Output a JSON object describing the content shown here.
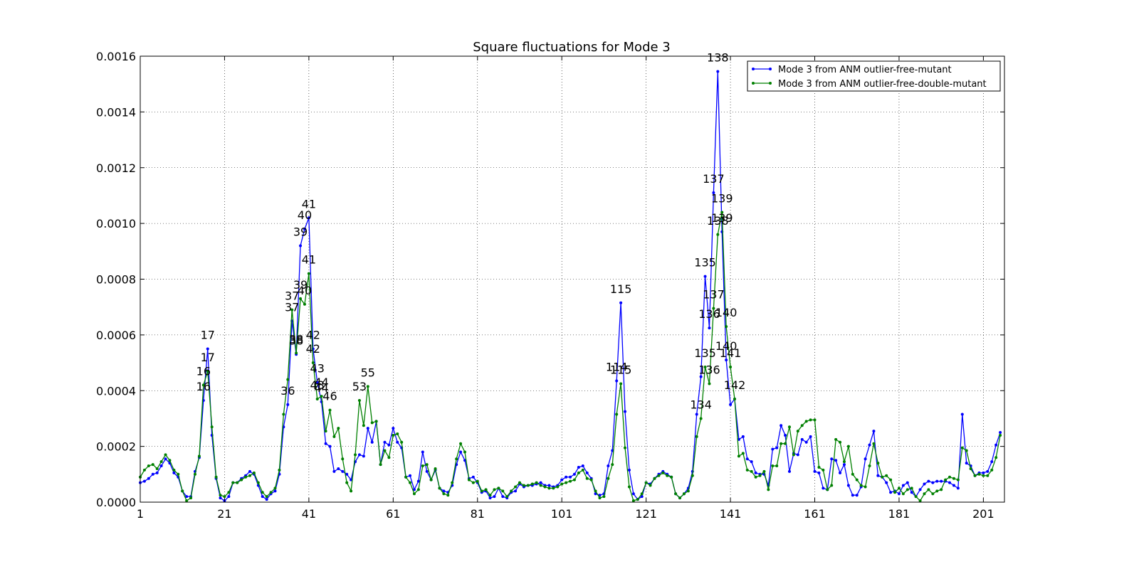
{
  "chart_data": {
    "type": "line",
    "title": "Square fluctuations for Mode 3",
    "xlabel": "",
    "ylabel": "",
    "xlim": [
      1,
      206
    ],
    "ylim": [
      0,
      0.0016
    ],
    "x_ticks": [
      1,
      21,
      41,
      61,
      81,
      101,
      121,
      141,
      161,
      181,
      201
    ],
    "y_ticks": [
      0.0,
      0.0002,
      0.0004,
      0.0006,
      0.0008,
      0.001,
      0.0012,
      0.0014,
      0.0016
    ],
    "y_tick_labels": [
      "0.0000",
      "0.0002",
      "0.0004",
      "0.0006",
      "0.0008",
      "0.0010",
      "0.0012",
      "0.0014",
      "0.0016"
    ],
    "grid": true,
    "legend_position": "top-right",
    "series": [
      {
        "name": "Mode 3 from ANM outlier-free-mutant",
        "color": "#0000ff",
        "values": [
          7e-05,
          7.5e-05,
          8.5e-05,
          0.0001,
          0.000105,
          0.00013,
          0.000155,
          0.00014,
          0.000105,
          9e-05,
          4e-05,
          2e-05,
          2e-05,
          0.00011,
          0.00016,
          0.000365,
          0.00055,
          0.00024,
          8.5e-05,
          1.5e-05,
          5e-06,
          2e-05,
          7e-05,
          7e-05,
          8.5e-05,
          9.5e-05,
          0.00011,
          0.0001,
          6e-05,
          2e-05,
          1e-05,
          3e-05,
          4e-05,
          0.0001,
          0.00027,
          0.00035,
          0.00065,
          0.00053,
          0.00092,
          0.00098,
          0.00102,
          0.00055,
          0.00043,
          0.00036,
          0.00021,
          0.0002,
          0.00011,
          0.00012,
          0.00011,
          0.0001,
          8e-05,
          0.000145,
          0.00017,
          0.000165,
          0.000265,
          0.000215,
          0.00029,
          0.000135,
          0.000215,
          0.000205,
          0.000265,
          0.000215,
          0.000195,
          9e-05,
          9.5e-05,
          4.5e-05,
          7.5e-05,
          0.00018,
          0.00011,
          8e-05,
          0.000115,
          5e-05,
          4e-05,
          3.5e-05,
          6e-05,
          0.000135,
          0.00018,
          0.00015,
          8.5e-05,
          9e-05,
          7e-05,
          3.5e-05,
          4e-05,
          1.5e-05,
          2e-05,
          5e-05,
          2e-05,
          1.5e-05,
          3.5e-05,
          4e-05,
          6.5e-05,
          5.5e-05,
          6e-05,
          6e-05,
          6.5e-05,
          7e-05,
          6e-05,
          6e-05,
          5.5e-05,
          6e-05,
          8e-05,
          9e-05,
          9e-05,
          0.0001,
          0.000125,
          0.00013,
          0.000105,
          8.5e-05,
          3e-05,
          2.5e-05,
          3e-05,
          0.00013,
          0.000185,
          0.000435,
          0.000715,
          0.000325,
          0.000115,
          3e-05,
          1e-05,
          2e-05,
          7e-05,
          6.5e-05,
          8.5e-05,
          0.0001,
          0.00011,
          0.0001,
          9e-05,
          3e-05,
          1.5e-05,
          3e-05,
          5e-05,
          0.00011,
          0.000315,
          0.00045,
          0.00081,
          0.000625,
          0.00111,
          0.001545,
          0.00097,
          0.00051,
          0.00035,
          0.00037,
          0.000225,
          0.000235,
          0.000155,
          0.000145,
          0.000105,
          0.0001,
          0.0001,
          6e-05,
          0.00019,
          0.000195,
          0.000275,
          0.00024,
          0.00011,
          0.000175,
          0.00017,
          0.000225,
          0.000215,
          0.000235,
          0.00011,
          0.000105,
          5e-05,
          4.5e-05,
          0.000155,
          0.00015,
          0.000105,
          0.000135,
          6e-05,
          2.5e-05,
          2.5e-05,
          5.5e-05,
          0.000155,
          0.000205,
          0.000255,
          9.5e-05,
          9e-05,
          7e-05,
          3.5e-05,
          4e-05,
          3e-05,
          6e-05,
          7e-05,
          3.5e-05,
          2e-05,
          4.5e-05,
          6.5e-05,
          7.5e-05,
          7e-05,
          7.5e-05,
          7.5e-05,
          7.5e-05,
          7e-05,
          6e-05,
          5e-05,
          0.000315,
          0.00014,
          0.00013,
          9.5e-05,
          0.000105,
          0.000105,
          0.00011,
          0.000145,
          0.000205,
          0.00025
        ],
        "annotations": [
          {
            "x": 16,
            "y": 0.000365,
            "label": "16"
          },
          {
            "x": 17,
            "y": 0.00055,
            "label": "17"
          },
          {
            "x": 36,
            "y": 0.00035,
            "label": "36"
          },
          {
            "x": 37,
            "y": 0.00065,
            "label": "37"
          },
          {
            "x": 38,
            "y": 0.00053,
            "label": "38"
          },
          {
            "x": 39,
            "y": 0.00092,
            "label": "39"
          },
          {
            "x": 40,
            "y": 0.00098,
            "label": "40"
          },
          {
            "x": 41,
            "y": 0.00102,
            "label": "41"
          },
          {
            "x": 42,
            "y": 0.00055,
            "label": "42"
          },
          {
            "x": 43,
            "y": 0.00043,
            "label": "43"
          },
          {
            "x": 44,
            "y": 0.00036,
            "label": "44"
          },
          {
            "x": 114,
            "y": 0.000435,
            "label": "114"
          },
          {
            "x": 115,
            "y": 0.000715,
            "label": "115"
          },
          {
            "x": 135,
            "y": 0.00081,
            "label": "135"
          },
          {
            "x": 136,
            "y": 0.000625,
            "label": "136"
          },
          {
            "x": 137,
            "y": 0.00111,
            "label": "137"
          },
          {
            "x": 138,
            "y": 0.001545,
            "label": "138"
          },
          {
            "x": 139,
            "y": 0.00097,
            "label": "139"
          },
          {
            "x": 140,
            "y": 0.00051,
            "label": "140"
          }
        ]
      },
      {
        "name": "Mode 3 from ANM outlier-free-double-mutant",
        "color": "#008000",
        "values": [
          9e-05,
          0.000115,
          0.00013,
          0.000135,
          0.00012,
          0.000145,
          0.00017,
          0.00015,
          0.000115,
          0.0001,
          4e-05,
          5e-06,
          1.5e-05,
          0.0001,
          0.000165,
          0.00042,
          0.00047,
          0.00027,
          9e-05,
          2.5e-05,
          2e-05,
          3.5e-05,
          7e-05,
          7e-05,
          8e-05,
          9e-05,
          9.5e-05,
          0.000105,
          7e-05,
          3.5e-05,
          2e-05,
          3.5e-05,
          5e-05,
          0.000115,
          0.000315,
          0.00044,
          0.00069,
          0.000535,
          0.00073,
          0.00071,
          0.00082,
          0.0005,
          0.00037,
          0.00038,
          0.000255,
          0.00033,
          0.000235,
          0.000265,
          0.000155,
          7e-05,
          4e-05,
          0.00017,
          0.000365,
          0.000275,
          0.000415,
          0.000285,
          0.00029,
          0.000135,
          0.000185,
          0.00016,
          0.00024,
          0.000245,
          0.000215,
          9e-05,
          7e-05,
          3e-05,
          4.5e-05,
          0.00013,
          0.000135,
          8e-05,
          0.00012,
          5e-05,
          3e-05,
          2.5e-05,
          7e-05,
          0.000155,
          0.00021,
          0.00018,
          8e-05,
          7e-05,
          7.5e-05,
          4e-05,
          4.5e-05,
          2.5e-05,
          4.5e-05,
          5e-05,
          4e-05,
          2e-05,
          4e-05,
          5.5e-05,
          7e-05,
          6e-05,
          6e-05,
          6.5e-05,
          7e-05,
          6e-05,
          5.5e-05,
          5e-05,
          5e-05,
          5.5e-05,
          6.5e-05,
          7e-05,
          7.5e-05,
          8e-05,
          0.000105,
          0.000115,
          8.5e-05,
          8e-05,
          4e-05,
          1.5e-05,
          2e-05,
          8.5e-05,
          0.000135,
          0.000315,
          0.000425,
          0.000195,
          5.5e-05,
          5e-06,
          1e-05,
          3e-05,
          7e-05,
          6e-05,
          8.5e-05,
          9.5e-05,
          0.000105,
          9.5e-05,
          9e-05,
          3e-05,
          1.5e-05,
          3e-05,
          4e-05,
          9.5e-05,
          0.000235,
          0.0003,
          0.000485,
          0.000425,
          0.000695,
          0.00096,
          0.00104,
          0.00063,
          0.000485,
          0.00037,
          0.000165,
          0.000175,
          0.000115,
          0.00011,
          9e-05,
          9.5e-05,
          0.00011,
          4.5e-05,
          0.00013,
          0.00013,
          0.00021,
          0.00021,
          0.00027,
          0.00017,
          0.000255,
          0.000275,
          0.00029,
          0.000295,
          0.000295,
          0.000125,
          0.000115,
          4.5e-05,
          6e-05,
          0.000225,
          0.000215,
          0.000145,
          0.0002,
          0.0001,
          8e-05,
          6e-05,
          5.5e-05,
          0.00013,
          0.00021,
          0.00014,
          9e-05,
          9.5e-05,
          8e-05,
          3.5e-05,
          5e-05,
          3e-05,
          4.5e-05,
          5e-05,
          2e-05,
          5e-06,
          3e-05,
          4.5e-05,
          3e-05,
          4e-05,
          4.5e-05,
          8e-05,
          9e-05,
          8.5e-05,
          8e-05,
          0.000195,
          0.000185,
          0.00012,
          9.5e-05,
          0.0001,
          9.5e-05,
          9.5e-05,
          0.000115,
          0.00016,
          0.00024
        ],
        "annotations": [
          {
            "x": 16,
            "y": 0.00042,
            "label": "16"
          },
          {
            "x": 17,
            "y": 0.00047,
            "label": "17"
          },
          {
            "x": 37,
            "y": 0.00069,
            "label": "37"
          },
          {
            "x": 38,
            "y": 0.000535,
            "label": "38"
          },
          {
            "x": 39,
            "y": 0.00073,
            "label": "39"
          },
          {
            "x": 40,
            "y": 0.00071,
            "label": "40"
          },
          {
            "x": 41,
            "y": 0.00082,
            "label": "41"
          },
          {
            "x": 42,
            "y": 0.0005,
            "label": "42"
          },
          {
            "x": 43,
            "y": 0.00037,
            "label": "43"
          },
          {
            "x": 44,
            "y": 0.00038,
            "label": "44"
          },
          {
            "x": 46,
            "y": 0.00033,
            "label": "46"
          },
          {
            "x": 53,
            "y": 0.000365,
            "label": "53"
          },
          {
            "x": 55,
            "y": 0.000415,
            "label": "55"
          },
          {
            "x": 115,
            "y": 0.000425,
            "label": "115"
          },
          {
            "x": 134,
            "y": 0.0003,
            "label": "134"
          },
          {
            "x": 135,
            "y": 0.000485,
            "label": "135"
          },
          {
            "x": 136,
            "y": 0.000425,
            "label": "136"
          },
          {
            "x": 137,
            "y": 0.000695,
            "label": "137"
          },
          {
            "x": 138,
            "y": 0.00096,
            "label": "138"
          },
          {
            "x": 139,
            "y": 0.00104,
            "label": "139"
          },
          {
            "x": 140,
            "y": 0.00063,
            "label": "140"
          },
          {
            "x": 141,
            "y": 0.000485,
            "label": "141"
          },
          {
            "x": 142,
            "y": 0.00037,
            "label": "142"
          }
        ]
      }
    ]
  }
}
